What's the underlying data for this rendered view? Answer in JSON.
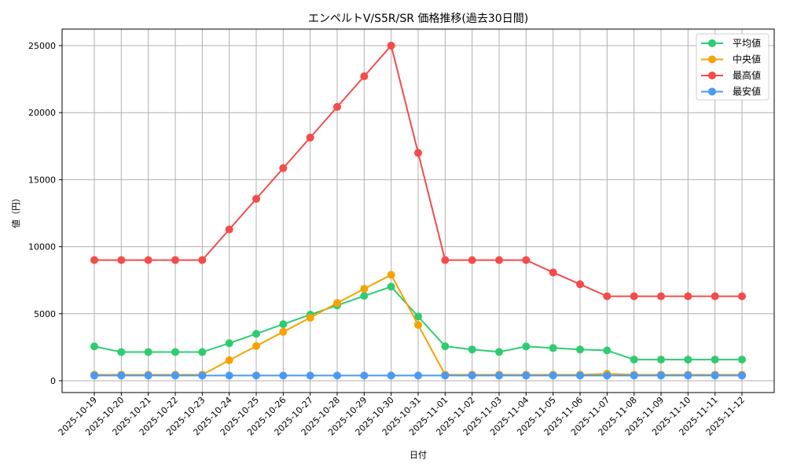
{
  "chart_data": {
    "type": "line",
    "title": "エンペルトV/S5R/SR 価格推移(過去30日間)",
    "xlabel": "日付",
    "ylabel": "値（円）",
    "ylim": [
      -800,
      26200
    ],
    "yticks": [
      0,
      5000,
      10000,
      15000,
      20000,
      25000
    ],
    "grid": true,
    "legend_position": "upper right",
    "categories": [
      "2025-10-19",
      "2025-10-20",
      "2025-10-21",
      "2025-10-22",
      "2025-10-23",
      "2025-10-24",
      "2025-10-25",
      "2025-10-26",
      "2025-10-27",
      "2025-10-28",
      "2025-10-29",
      "2025-10-30",
      "2025-10-31",
      "2025-11-01",
      "2025-11-02",
      "2025-11-03",
      "2025-11-04",
      "2025-11-05",
      "2025-11-06",
      "2025-11-07",
      "2025-11-08",
      "2025-11-09",
      "2025-11-10",
      "2025-11-11",
      "2025-11-12"
    ],
    "series": [
      {
        "name": "平均値",
        "color": "#2ecc71",
        "values": [
          2560,
          2140,
          2140,
          2140,
          2140,
          2800,
          3500,
          4220,
          4930,
          5620,
          6330,
          7020,
          4790,
          2570,
          2330,
          2150,
          2560,
          2440,
          2330,
          2260,
          1580,
          1580,
          1580,
          1580,
          1580
        ]
      },
      {
        "name": "中央値",
        "color": "#f5a300",
        "values": [
          450,
          450,
          450,
          450,
          450,
          1530,
          2590,
          3650,
          4700,
          5800,
          6860,
          7900,
          4170,
          450,
          450,
          450,
          450,
          450,
          450,
          520,
          450,
          450,
          450,
          450,
          450
        ]
      },
      {
        "name": "最高値",
        "color": "#f54b4b",
        "values": [
          9000,
          9000,
          9000,
          9000,
          9000,
          11290,
          13570,
          15860,
          18140,
          20430,
          22710,
          25000,
          17000,
          9000,
          9000,
          9000,
          9000,
          8080,
          7200,
          6300,
          6300,
          6300,
          6300,
          6300,
          6300
        ]
      },
      {
        "name": "最安値",
        "color": "#4a9af5",
        "values": [
          390,
          390,
          390,
          390,
          390,
          390,
          390,
          390,
          390,
          390,
          390,
          390,
          390,
          390,
          390,
          390,
          390,
          390,
          390,
          390,
          390,
          390,
          390,
          390,
          390
        ]
      }
    ]
  }
}
